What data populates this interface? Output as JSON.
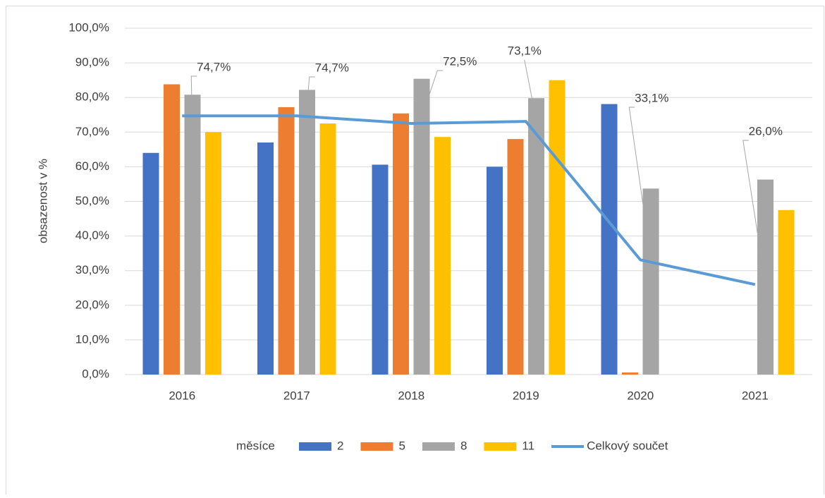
{
  "chart_data": {
    "type": "bar_line",
    "y_label": "obsazenost v %",
    "legend_title": "měsíce",
    "categories": [
      "2016",
      "2017",
      "2018",
      "2019",
      "2020",
      "2021"
    ],
    "ylim": [
      0,
      100
    ],
    "yticks": [
      {
        "value": 0,
        "label": "0,0%"
      },
      {
        "value": 10,
        "label": "10,0%"
      },
      {
        "value": 20,
        "label": "20,0%"
      },
      {
        "value": 30,
        "label": "30,0%"
      },
      {
        "value": 40,
        "label": "40,0%"
      },
      {
        "value": 50,
        "label": "50,0%"
      },
      {
        "value": 60,
        "label": "60,0%"
      },
      {
        "value": 70,
        "label": "70,0%"
      },
      {
        "value": 80,
        "label": "80,0%"
      },
      {
        "value": 90,
        "label": "90,0%"
      },
      {
        "value": 100,
        "label": "100,0%"
      }
    ],
    "grid": true,
    "legend": "bottom",
    "series": [
      {
        "name": "2",
        "type": "bar",
        "color": "#4472c4",
        "values": [
          64.0,
          67.0,
          60.6,
          60.0,
          78.1,
          null
        ]
      },
      {
        "name": "5",
        "type": "bar",
        "color": "#ed7d31",
        "values": [
          83.8,
          77.2,
          75.4,
          68.0,
          0.6,
          null
        ]
      },
      {
        "name": "8",
        "type": "bar",
        "color": "#a5a5a5",
        "values": [
          80.8,
          82.2,
          85.4,
          79.8,
          53.7,
          56.3
        ]
      },
      {
        "name": "11",
        "type": "bar",
        "color": "#ffc000",
        "values": [
          70.0,
          72.5,
          68.6,
          85.0,
          null,
          47.5
        ]
      },
      {
        "name": "Celkový součet",
        "type": "line",
        "color": "#5b9bd5",
        "values": [
          74.7,
          74.7,
          72.5,
          73.1,
          33.1,
          26.0
        ],
        "value_labels": [
          "74,7%",
          "74,7%",
          "72,5%",
          "73,1%",
          "33,1%",
          "26,0%"
        ]
      }
    ]
  }
}
